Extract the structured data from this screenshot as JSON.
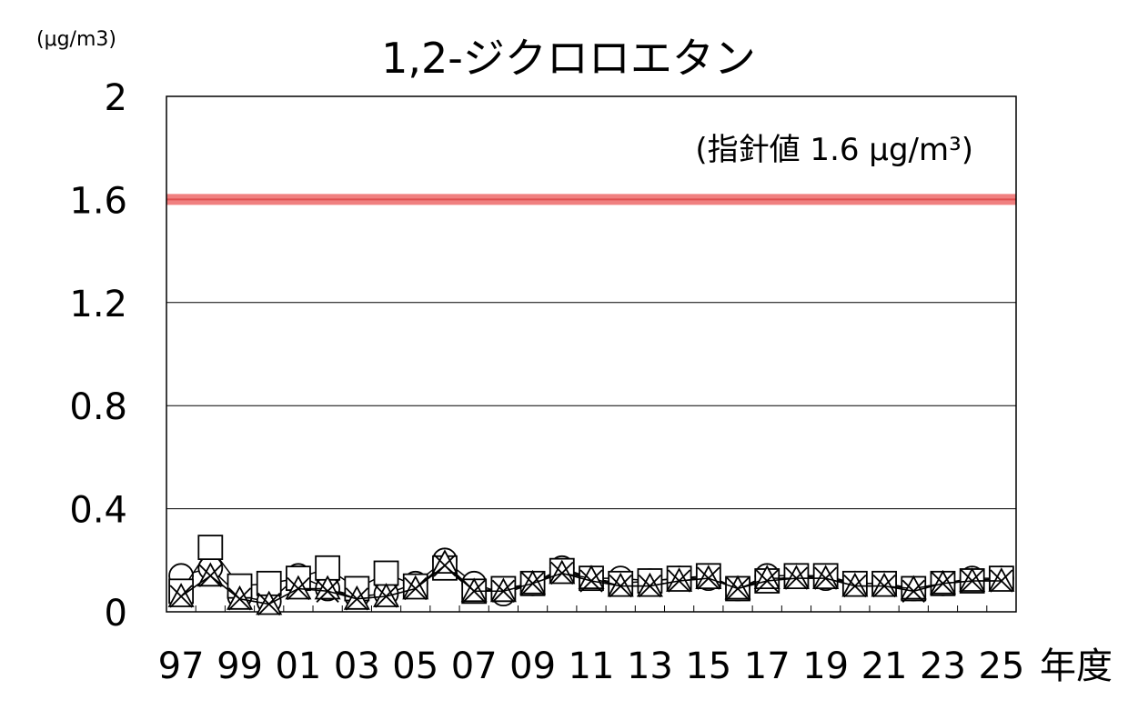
{
  "chart_data": {
    "type": "line",
    "title": "1,2-ジクロロエタン",
    "unit_label": "(μg/m3)",
    "xlabel": "年度",
    "categories": [
      "97",
      "98",
      "99",
      "00",
      "01",
      "02",
      "03",
      "04",
      "05",
      "06",
      "07",
      "08",
      "09",
      "10",
      "11",
      "12",
      "13",
      "14",
      "15",
      "16",
      "17",
      "18",
      "19",
      "20",
      "21",
      "22",
      "23",
      "24",
      "25"
    ],
    "x_tick_labels": [
      "97",
      "99",
      "01",
      "03",
      "05",
      "07",
      "09",
      "11",
      "13",
      "15",
      "17",
      "19",
      "21",
      "23",
      "25"
    ],
    "y_tick_labels": [
      "0",
      "0.4",
      "0.8",
      "1.2",
      "1.6",
      "2"
    ],
    "ylim": [
      0,
      2
    ],
    "grid": true,
    "guideline": {
      "value": 1.6,
      "label": "(指針値 1.6 μg/m³)",
      "color": "#f08080"
    },
    "series": [
      {
        "marker": "circle",
        "values": [
          0.14,
          0.17,
          0.06,
          0.04,
          0.14,
          0.09,
          0.06,
          0.07,
          0.11,
          0.2,
          0.11,
          0.07,
          0.11,
          0.17,
          0.13,
          0.13,
          0.12,
          0.13,
          0.13,
          0.09,
          0.14,
          0.14,
          0.13,
          0.11,
          0.11,
          0.09,
          0.11,
          0.13,
          0.13
        ]
      },
      {
        "marker": "square",
        "values": [
          0.08,
          0.25,
          0.1,
          0.11,
          0.13,
          0.17,
          0.09,
          0.15,
          0.1,
          0.17,
          0.08,
          0.09,
          0.11,
          0.16,
          0.13,
          0.11,
          0.12,
          0.13,
          0.14,
          0.09,
          0.12,
          0.14,
          0.14,
          0.11,
          0.11,
          0.09,
          0.11,
          0.12,
          0.13
        ]
      },
      {
        "marker": "triangle",
        "values": [
          0.06,
          0.14,
          0.05,
          0.03,
          0.09,
          0.09,
          0.05,
          0.06,
          0.09,
          0.19,
          0.08,
          0.08,
          0.11,
          0.15,
          0.13,
          0.1,
          0.1,
          0.12,
          0.13,
          0.09,
          0.13,
          0.13,
          0.13,
          0.1,
          0.1,
          0.09,
          0.11,
          0.12,
          0.12
        ]
      },
      {
        "marker": "x",
        "values": [
          0.06,
          0.14,
          0.05,
          0.03,
          0.09,
          0.08,
          0.05,
          0.06,
          0.09,
          0.18,
          0.08,
          0.08,
          0.11,
          0.15,
          0.12,
          0.1,
          0.1,
          0.12,
          0.13,
          0.09,
          0.12,
          0.13,
          0.13,
          0.1,
          0.1,
          0.08,
          0.11,
          0.12,
          0.12
        ]
      }
    ]
  }
}
